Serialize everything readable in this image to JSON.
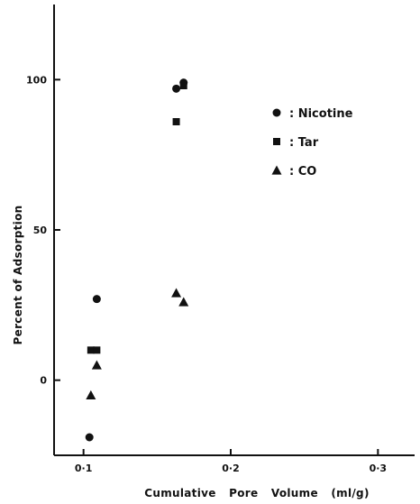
{
  "chart_data": {
    "type": "scatter",
    "xlabel": "Cumulative Pore Volume (ml/g)",
    "ylabel": "Percent of Adsorption",
    "xlim": [
      0.08,
      0.32
    ],
    "ylim": [
      -25,
      125
    ],
    "x_ticks": [
      {
        "value": 0.1,
        "label": "0·1"
      },
      {
        "value": 0.2,
        "label": "0·2"
      },
      {
        "value": 0.3,
        "label": "0·3"
      }
    ],
    "y_ticks": [
      {
        "value": 0,
        "label": "0"
      },
      {
        "value": 50,
        "label": "50"
      },
      {
        "value": 100,
        "label": "100"
      }
    ],
    "grid": false,
    "legend_position": "top-right",
    "series": [
      {
        "name": "Nicotine",
        "marker": "circle",
        "points": [
          {
            "x": 0.104,
            "y": -19
          },
          {
            "x": 0.109,
            "y": 27
          },
          {
            "x": 0.163,
            "y": 97
          },
          {
            "x": 0.168,
            "y": 99
          }
        ]
      },
      {
        "name": "Tar",
        "marker": "square",
        "points": [
          {
            "x": 0.105,
            "y": 10
          },
          {
            "x": 0.109,
            "y": 10
          },
          {
            "x": 0.163,
            "y": 86
          },
          {
            "x": 0.168,
            "y": 98
          }
        ]
      },
      {
        "name": "CO",
        "marker": "triangle",
        "points": [
          {
            "x": 0.105,
            "y": -5
          },
          {
            "x": 0.109,
            "y": 5
          },
          {
            "x": 0.163,
            "y": 29
          },
          {
            "x": 0.168,
            "y": 26
          }
        ]
      }
    ],
    "legend_separator": ":"
  },
  "colors": {
    "ink": "#111111",
    "background": "#ffffff"
  }
}
